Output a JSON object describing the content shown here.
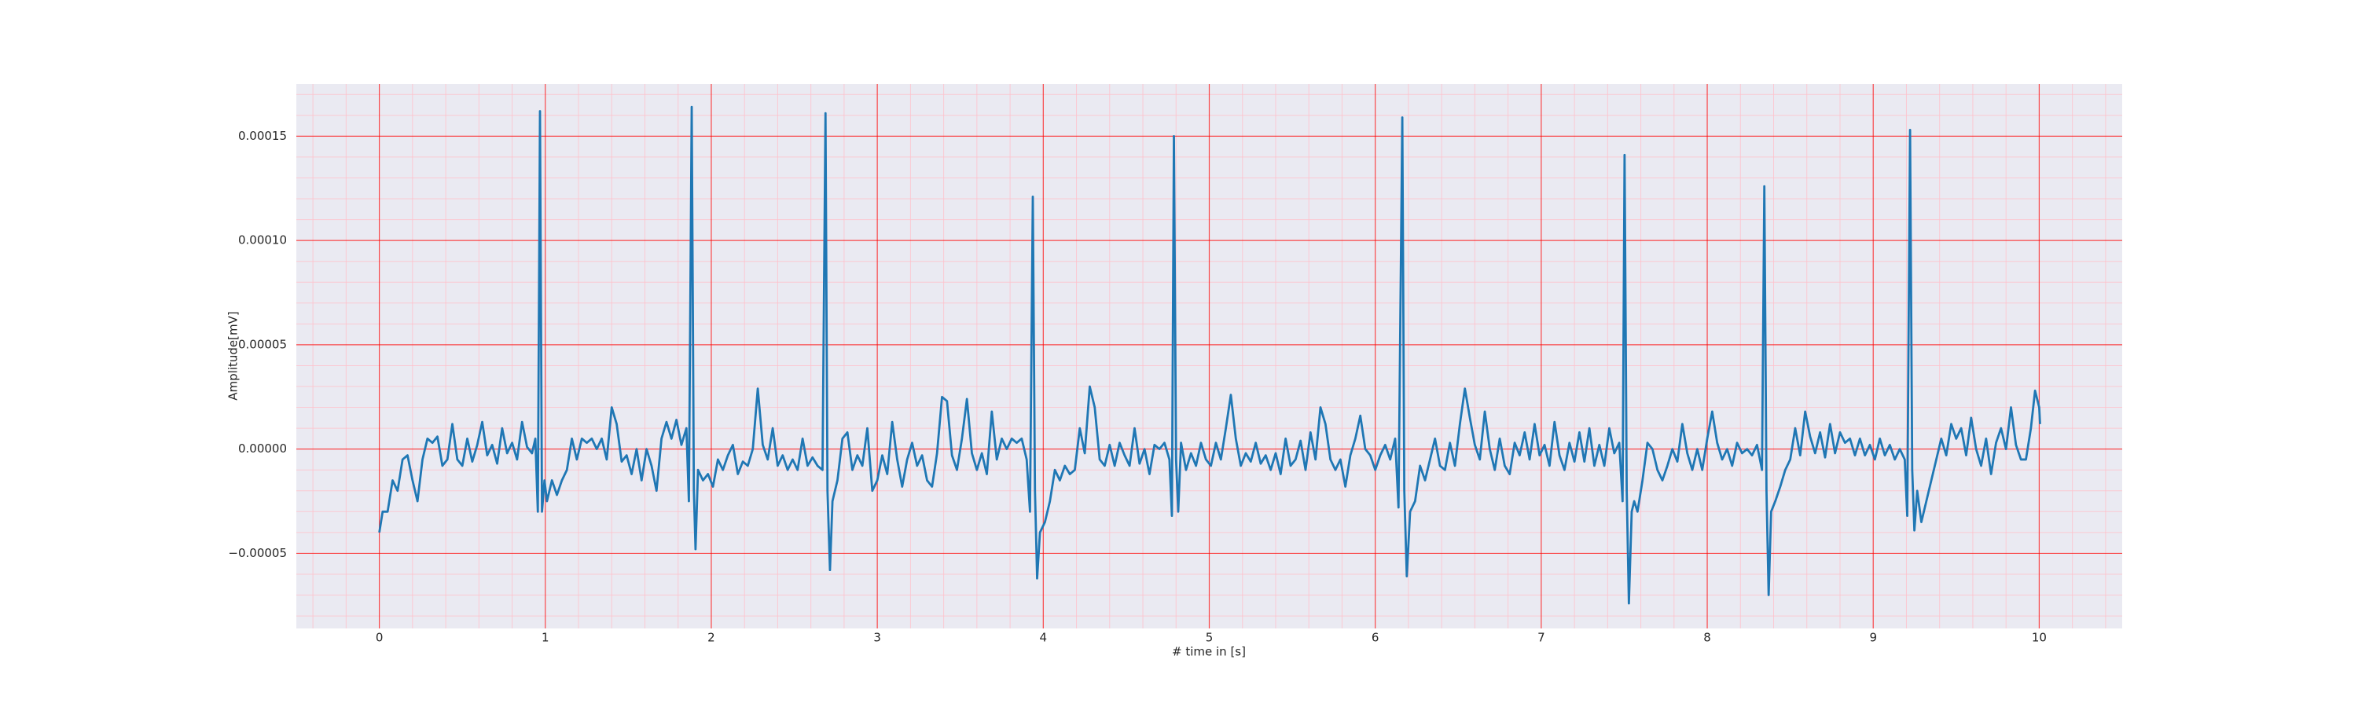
{
  "chart_data": {
    "type": "line",
    "xlabel": "# time in [s]",
    "ylabel": "Amplitude[mV]",
    "color": "#1f77b4",
    "grid": true,
    "minor_divisions": 5,
    "xlim": [
      -0.5,
      10.5
    ],
    "xticks": [
      0,
      1,
      2,
      3,
      4,
      5,
      6,
      7,
      8,
      9,
      10
    ],
    "ylim": [
      -8.6e-05,
      0.000175
    ],
    "yticks": [
      {
        "value": -5e-05,
        "label": "−0.00005"
      },
      {
        "value": 0,
        "label": "0.00000"
      },
      5e-05,
      {
        "value": 0.0001,
        "label": "0.00010"
      },
      0.00015
    ],
    "x": [
      0,
      0.02,
      0.05,
      0.08,
      0.11,
      0.14,
      0.17,
      0.2,
      0.23,
      0.26,
      0.29,
      0.32,
      0.35,
      0.38,
      0.41,
      0.44,
      0.47,
      0.5,
      0.53,
      0.56,
      0.59,
      0.62,
      0.65,
      0.68,
      0.71,
      0.74,
      0.77,
      0.8,
      0.83,
      0.86,
      0.89,
      0.92,
      0.94,
      0.955,
      0.968,
      0.98,
      0.995,
      1.01,
      1.04,
      1.07,
      1.1,
      1.13,
      1.16,
      1.19,
      1.22,
      1.25,
      1.28,
      1.31,
      1.34,
      1.37,
      1.4,
      1.43,
      1.46,
      1.49,
      1.52,
      1.55,
      1.58,
      1.61,
      1.64,
      1.67,
      1.7,
      1.73,
      1.76,
      1.79,
      1.82,
      1.85,
      1.865,
      1.882,
      1.895,
      1.905,
      1.92,
      1.95,
      1.98,
      2.01,
      2.04,
      2.07,
      2.1,
      2.13,
      2.16,
      2.19,
      2.22,
      2.25,
      2.28,
      2.31,
      2.34,
      2.37,
      2.4,
      2.43,
      2.46,
      2.49,
      2.52,
      2.55,
      2.58,
      2.61,
      2.64,
      2.67,
      2.688,
      2.7,
      2.715,
      2.73,
      2.76,
      2.79,
      2.82,
      2.85,
      2.88,
      2.91,
      2.94,
      2.97,
      3.0,
      3.03,
      3.06,
      3.09,
      3.12,
      3.15,
      3.18,
      3.21,
      3.24,
      3.27,
      3.3,
      3.33,
      3.36,
      3.39,
      3.42,
      3.45,
      3.48,
      3.51,
      3.54,
      3.57,
      3.6,
      3.63,
      3.66,
      3.69,
      3.72,
      3.75,
      3.78,
      3.81,
      3.84,
      3.87,
      3.9,
      3.92,
      3.937,
      3.95,
      3.963,
      3.98,
      4.01,
      4.04,
      4.07,
      4.1,
      4.13,
      4.16,
      4.19,
      4.22,
      4.25,
      4.28,
      4.31,
      4.34,
      4.37,
      4.4,
      4.43,
      4.46,
      4.49,
      4.52,
      4.55,
      4.58,
      4.61,
      4.64,
      4.67,
      4.7,
      4.73,
      4.76,
      4.775,
      4.787,
      4.8,
      4.813,
      4.83,
      4.86,
      4.89,
      4.92,
      4.95,
      4.98,
      5.01,
      5.04,
      5.07,
      5.1,
      5.13,
      5.16,
      5.19,
      5.22,
      5.25,
      5.28,
      5.31,
      5.34,
      5.37,
      5.4,
      5.43,
      5.46,
      5.49,
      5.52,
      5.55,
      5.58,
      5.61,
      5.64,
      5.67,
      5.7,
      5.73,
      5.76,
      5.79,
      5.82,
      5.85,
      5.88,
      5.91,
      5.94,
      5.97,
      6.0,
      6.03,
      6.06,
      6.09,
      6.12,
      6.14,
      6.163,
      6.175,
      6.19,
      6.21,
      6.24,
      6.27,
      6.3,
      6.33,
      6.36,
      6.39,
      6.42,
      6.45,
      6.48,
      6.51,
      6.54,
      6.57,
      6.6,
      6.63,
      6.66,
      6.69,
      6.72,
      6.75,
      6.78,
      6.81,
      6.84,
      6.87,
      6.9,
      6.93,
      6.96,
      6.99,
      7.02,
      7.05,
      7.08,
      7.11,
      7.14,
      7.17,
      7.2,
      7.23,
      7.26,
      7.29,
      7.32,
      7.35,
      7.38,
      7.41,
      7.44,
      7.47,
      7.49,
      7.502,
      7.515,
      7.528,
      7.545,
      7.56,
      7.58,
      7.61,
      7.64,
      7.67,
      7.7,
      7.73,
      7.76,
      7.79,
      7.82,
      7.85,
      7.88,
      7.91,
      7.94,
      7.97,
      8.0,
      8.03,
      8.06,
      8.09,
      8.12,
      8.15,
      8.18,
      8.21,
      8.24,
      8.27,
      8.3,
      8.33,
      8.344,
      8.357,
      8.37,
      8.385,
      8.41,
      8.44,
      8.47,
      8.5,
      8.53,
      8.56,
      8.59,
      8.62,
      8.65,
      8.68,
      8.71,
      8.74,
      8.77,
      8.8,
      8.83,
      8.86,
      8.89,
      8.92,
      8.95,
      8.98,
      9.01,
      9.04,
      9.07,
      9.1,
      9.13,
      9.16,
      9.19,
      9.205,
      9.222,
      9.235,
      9.248,
      9.265,
      9.29,
      9.32,
      9.35,
      9.38,
      9.41,
      9.44,
      9.47,
      9.5,
      9.53,
      9.56,
      9.59,
      9.62,
      9.65,
      9.68,
      9.71,
      9.74,
      9.77,
      9.8,
      9.83,
      9.86,
      9.89,
      9.92,
      9.95,
      9.975,
      10.0,
      10.005
    ],
    "values": [
      -4e-05,
      -3e-05,
      -3e-05,
      -1.5e-05,
      -2e-05,
      -5e-06,
      -3e-06,
      -1.5e-05,
      -2.5e-05,
      -5e-06,
      5e-06,
      3e-06,
      6e-06,
      -8e-06,
      -5e-06,
      1.2e-05,
      -5e-06,
      -8e-06,
      5e-06,
      -6e-06,
      2e-06,
      1.3e-05,
      -3e-06,
      2e-06,
      -7e-06,
      1e-05,
      -2e-06,
      3e-06,
      -5e-06,
      1.3e-05,
      1e-06,
      -2e-06,
      5e-06,
      -3e-05,
      0.000162,
      -3e-05,
      -1.5e-05,
      -2.5e-05,
      -1.5e-05,
      -2.2e-05,
      -1.5e-05,
      -1e-05,
      5e-06,
      -5e-06,
      5e-06,
      3e-06,
      5e-06,
      0.0,
      5e-06,
      -5e-06,
      2e-05,
      1.2e-05,
      -6e-06,
      -3e-06,
      -1.2e-05,
      0.0,
      -1.5e-05,
      0.0,
      -8e-06,
      -2e-05,
      5e-06,
      1.3e-05,
      5e-06,
      1.4e-05,
      2e-06,
      1e-05,
      -2.5e-05,
      0.000164,
      -2e-05,
      -4.8e-05,
      -1e-05,
      -1.5e-05,
      -1.2e-05,
      -1.8e-05,
      -5e-06,
      -1e-05,
      -3e-06,
      2e-06,
      -1.2e-05,
      -6e-06,
      -8e-06,
      0.0,
      2.9e-05,
      2e-06,
      -5e-06,
      1e-05,
      -8e-06,
      -3e-06,
      -1e-05,
      -5e-06,
      -1e-05,
      5e-06,
      -8e-06,
      -4e-06,
      -8e-06,
      -1e-05,
      0.000161,
      -2e-05,
      -5.8e-05,
      -2.5e-05,
      -1.5e-05,
      5e-06,
      8e-06,
      -1e-05,
      -3e-06,
      -8e-06,
      1e-05,
      -2e-05,
      -1.5e-05,
      -3e-06,
      -1.2e-05,
      1.3e-05,
      -5e-06,
      -1.8e-05,
      -5e-06,
      3e-06,
      -8e-06,
      -3e-06,
      -1.5e-05,
      -1.8e-05,
      -2e-06,
      2.5e-05,
      2.3e-05,
      -3e-06,
      -1e-05,
      5e-06,
      2.4e-05,
      -2e-06,
      -1e-05,
      -2e-06,
      -1.2e-05,
      1.8e-05,
      -5e-06,
      5e-06,
      0.0,
      5e-06,
      3e-06,
      5e-06,
      -5e-06,
      -3e-05,
      0.000121,
      -2e-05,
      -6.2e-05,
      -4e-05,
      -3.5e-05,
      -2.5e-05,
      -1e-05,
      -1.5e-05,
      -8e-06,
      -1.2e-05,
      -1e-05,
      1e-05,
      -2e-06,
      3e-05,
      2e-05,
      -5e-06,
      -8e-06,
      2e-06,
      -8e-06,
      3e-06,
      -3e-06,
      -8e-06,
      1e-05,
      -7e-06,
      0.0,
      -1.2e-05,
      2e-06,
      0.0,
      3e-06,
      -5e-06,
      -3.2e-05,
      0.00015,
      -5e-06,
      -3e-05,
      3e-06,
      -1e-05,
      -2e-06,
      -8e-06,
      3e-06,
      -5e-06,
      -8e-06,
      3e-06,
      -5e-06,
      1e-05,
      2.6e-05,
      5e-06,
      -8e-06,
      -2e-06,
      -6e-06,
      3e-06,
      -7e-06,
      -3e-06,
      -1e-05,
      -2e-06,
      -1.2e-05,
      5e-06,
      -8e-06,
      -5e-06,
      4e-06,
      -1e-05,
      8e-06,
      -5e-06,
      2e-05,
      1.2e-05,
      -5e-06,
      -1e-05,
      -5e-06,
      -1.8e-05,
      -3e-06,
      5e-06,
      1.6e-05,
      0.0,
      -3e-06,
      -1e-05,
      -3e-06,
      2e-06,
      -5e-06,
      5e-06,
      -2.8e-05,
      0.000159,
      -2e-05,
      -6.1e-05,
      -3e-05,
      -2.5e-05,
      -8e-06,
      -1.5e-05,
      -5e-06,
      5e-06,
      -8e-06,
      -1e-05,
      3e-06,
      -8e-06,
      1.2e-05,
      2.9e-05,
      1.5e-05,
      2e-06,
      -5e-06,
      1.8e-05,
      0.0,
      -1e-05,
      5e-06,
      -8e-06,
      -1.2e-05,
      3e-06,
      -3e-06,
      8e-06,
      -5e-06,
      1.2e-05,
      -3e-06,
      2e-06,
      -8e-06,
      1.3e-05,
      -3e-06,
      -1e-05,
      3e-06,
      -6e-06,
      8e-06,
      -6e-06,
      1e-05,
      -8e-06,
      2e-06,
      -8e-06,
      1e-05,
      -2e-06,
      3e-06,
      -2.5e-05,
      0.000141,
      -2e-05,
      -7.4e-05,
      -3e-05,
      -2.5e-05,
      -3e-05,
      -1.5e-05,
      3e-06,
      0.0,
      -1e-05,
      -1.5e-05,
      -8e-06,
      0.0,
      -6e-06,
      1.2e-05,
      -2e-06,
      -1e-05,
      0.0,
      -1e-05,
      5e-06,
      1.8e-05,
      3e-06,
      -5e-06,
      0.0,
      -8e-06,
      3e-06,
      -2e-06,
      0.0,
      -3e-06,
      2e-06,
      -1e-05,
      0.000126,
      -2e-05,
      -7e-05,
      -3e-05,
      -2.5e-05,
      -1.8e-05,
      -1e-05,
      -5e-06,
      1e-05,
      -3e-06,
      1.8e-05,
      6e-06,
      -2e-06,
      8e-06,
      -4e-06,
      1.2e-05,
      -2e-06,
      8e-06,
      3e-06,
      5e-06,
      -3e-06,
      5e-06,
      -3e-06,
      2e-06,
      -5e-06,
      5e-06,
      -3e-06,
      2e-06,
      -5e-06,
      0.0,
      -5e-06,
      -3.2e-05,
      0.000153,
      -1e-05,
      -3.9e-05,
      -2e-05,
      -3.5e-05,
      -2.5e-05,
      -1.5e-05,
      -5e-06,
      5e-06,
      -3e-06,
      1.2e-05,
      5e-06,
      1e-05,
      -3e-06,
      1.5e-05,
      0.0,
      -8e-06,
      5e-06,
      -1.2e-05,
      3e-06,
      1e-05,
      0.0,
      2e-05,
      2e-06,
      -5e-06,
      -5e-06,
      1e-05,
      2.8e-05,
      2e-05,
      1.2e-05
    ]
  }
}
